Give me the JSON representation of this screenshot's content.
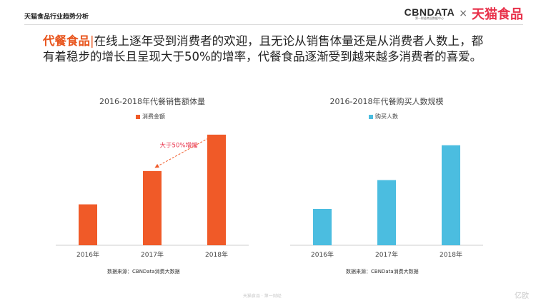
{
  "header": {
    "section_title": "天猫食品行业趋势分析",
    "logo_cbn": "CBNDATA",
    "logo_cbn_sub": "第一财经商业数据中心",
    "logo_sep": "×",
    "logo_tmall": "天猫食品"
  },
  "headline": {
    "highlight": "代餐食品",
    "bar": "|",
    "text": "在线上逐年受到消费者的欢迎，且无论从销售体量还是从消费者人数上，都有着稳步的增长且呈现大于50%的增率，代餐食品逐渐受到越来越多消费者的喜爱。"
  },
  "colors": {
    "orange": "#f05a28",
    "blue": "#4bbde0",
    "accent": "#e8541c"
  },
  "chart_data": [
    {
      "type": "bar",
      "title": "2016-2018年代餐销售额体量",
      "legend": "消费金额",
      "categories": [
        "2016年",
        "2017年",
        "2018年"
      ],
      "values": [
        27,
        49,
        73
      ],
      "ylim": [
        0,
        80
      ],
      "annotation": "大于50%增幅",
      "source": "数据来源：CBNData消费大数据",
      "color": "#f05a28"
    },
    {
      "type": "bar",
      "title": "2016-2018年代餐购买人数规模",
      "legend": "购买人数",
      "categories": [
        "2016年",
        "2017年",
        "2018年"
      ],
      "values": [
        24,
        43,
        66
      ],
      "ylim": [
        0,
        80
      ],
      "source": "数据来源：CBNData消费大数据",
      "color": "#4bbde0"
    }
  ],
  "footer": {
    "mark": "天猫食品 · 第一财经",
    "brand": "亿欧"
  }
}
